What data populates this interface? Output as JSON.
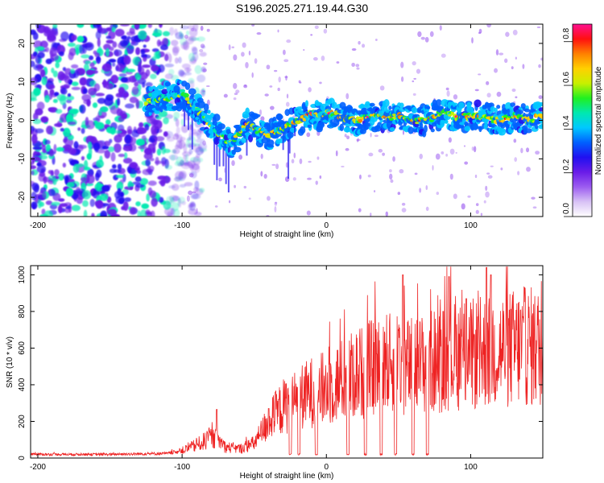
{
  "figure": {
    "title": "S196.2025.271.19.44.G30"
  },
  "chart_data": [
    {
      "type": "heatmap",
      "title": "S196.2025.271.19.44.G30",
      "xlabel": "Height of straight line (km)",
      "ylabel": "Frequency (Hz)",
      "xlim": [
        -205,
        150
      ],
      "ylim": [
        -25,
        25
      ],
      "xticks": [
        -200,
        -100,
        0,
        100
      ],
      "yticks": [
        -20,
        -10,
        0,
        10,
        20
      ],
      "colorbar": {
        "label": "Normalized spectral amplitude",
        "range": [
          0.0,
          0.88
        ],
        "ticks": [
          0.0,
          0.2,
          0.4,
          0.6,
          0.8
        ],
        "colors": [
          "#ffffff",
          "#d8c2f5",
          "#9c5cf0",
          "#6a1ce8",
          "#2010f0",
          "#0060ff",
          "#00c8ff",
          "#00e8b0",
          "#20f020",
          "#c8f000",
          "#ffd000",
          "#ff8000",
          "#ff1010",
          "#ff1090"
        ]
      },
      "signal_track": {
        "x_km": [
          -120,
          -110,
          -100,
          -95,
          -90,
          -85,
          -80,
          -75,
          -70,
          -65,
          -60,
          -55,
          -50,
          -45,
          -40,
          -35,
          -30,
          -25,
          -20,
          -15,
          -10,
          -5,
          0,
          10,
          20,
          30,
          40,
          50,
          60,
          70,
          80,
          90,
          100,
          110,
          120,
          130,
          140,
          150
        ],
        "freq_hz": [
          5,
          6,
          7,
          5,
          3,
          1,
          -1,
          -3,
          -5,
          -6,
          -3,
          -1,
          -2,
          -3,
          -4,
          -3,
          -2,
          -1,
          0,
          1,
          2,
          1,
          2,
          1,
          0,
          1,
          1,
          1,
          0,
          0,
          2,
          1,
          1,
          1,
          0,
          1,
          0,
          1
        ]
      },
      "noise_region_x_km": [
        -205,
        -100
      ]
    },
    {
      "type": "line",
      "xlabel": "Height of straight line (km)",
      "ylabel": "SNR (10 * v/v)",
      "xlim": [
        -205,
        150
      ],
      "ylim": [
        0,
        1050
      ],
      "xticks": [
        -200,
        -100,
        0,
        100
      ],
      "yticks": [
        0,
        200,
        400,
        600,
        800,
        1000
      ],
      "series": [
        {
          "name": "SNR",
          "color": "#ee2222",
          "envelope_x_km": [
            -205,
            -150,
            -110,
            -100,
            -90,
            -80,
            -75,
            -70,
            -60,
            -50,
            -40,
            -30,
            -20,
            -10,
            0,
            10,
            20,
            30,
            40,
            50,
            60,
            70,
            80,
            90,
            100,
            110,
            120,
            130,
            140,
            150
          ],
          "envelope_y": [
            20,
            20,
            25,
            40,
            70,
            110,
            100,
            60,
            50,
            80,
            200,
            280,
            320,
            360,
            380,
            420,
            460,
            480,
            520,
            500,
            500,
            520,
            540,
            560,
            560,
            580,
            590,
            600,
            610,
            600
          ],
          "peak_x_km": [
            -76,
            -40,
            -33,
            53,
            85,
            97,
            111,
            114
          ],
          "peak_y": [
            265,
            270,
            320,
            1000,
            990,
            870,
            1040,
            1000
          ],
          "dropout_x_km": [
            -25,
            -19,
            -7,
            15,
            27,
            38,
            48,
            60,
            70
          ]
        }
      ]
    }
  ]
}
